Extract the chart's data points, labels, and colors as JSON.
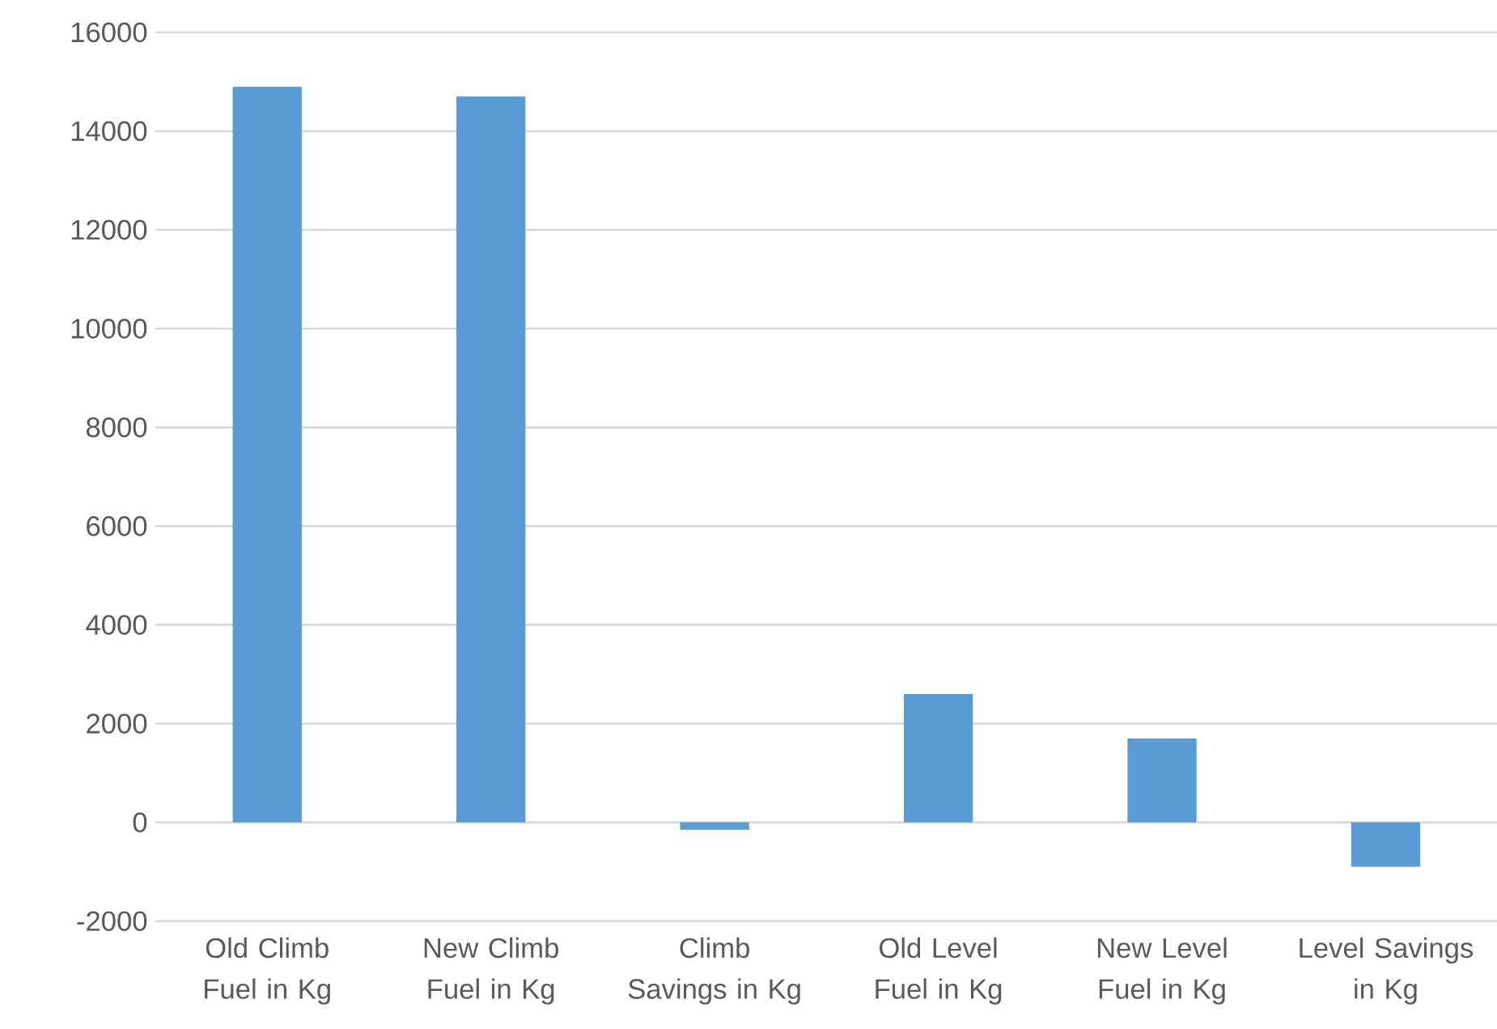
{
  "chart_data": {
    "type": "bar",
    "categories": [
      "Old Climb Fuel in Kg",
      "New Climb Fuel in Kg",
      "Climb Savings in Kg",
      "Old Level Fuel in Kg",
      "New Level Fuel in Kg",
      "Level Savings in Kg"
    ],
    "values": [
      14900,
      14700,
      -150,
      2600,
      1700,
      -900
    ],
    "color": "#5b9bd5",
    "ylim": [
      -2000,
      16000
    ],
    "yticks": [
      -2000,
      0,
      2000,
      4000,
      6000,
      8000,
      10000,
      12000,
      14000,
      16000
    ],
    "grid": "y"
  }
}
